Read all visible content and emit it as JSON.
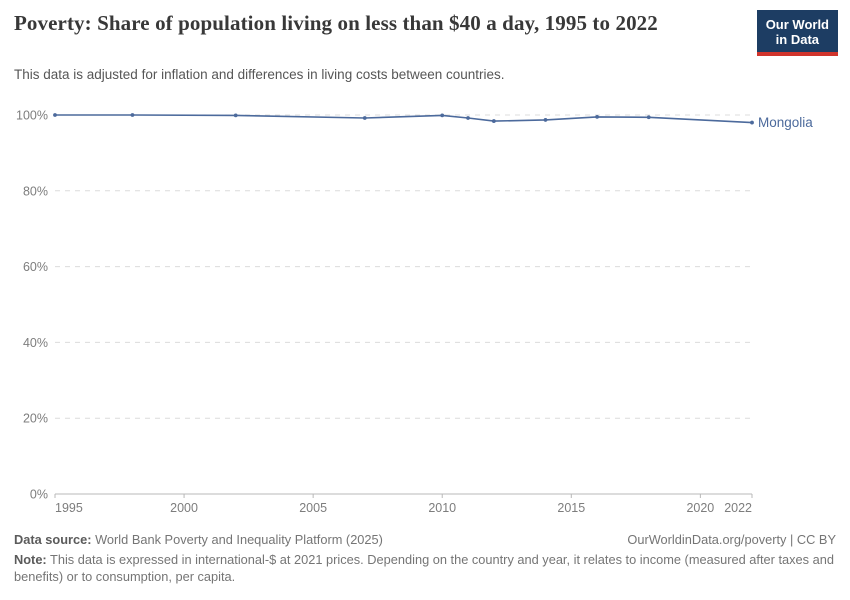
{
  "header": {
    "title": "Poverty: Share of population living on less than $40 a day, 1995 to 2022",
    "subtitle": "This data is adjusted for inflation and differences in living costs between countries."
  },
  "logo": {
    "line1": "Our World",
    "line2": "in Data",
    "bg_color": "#1d3d63",
    "bar_color": "#d0342c"
  },
  "chart_data": {
    "type": "line",
    "title": "Poverty: Share of population living on less than $40 a day, 1995 to 2022",
    "xlabel": "",
    "ylabel": "",
    "xlim": [
      1995,
      2022
    ],
    "ylim": [
      0,
      100
    ],
    "x_ticks": [
      1995,
      2000,
      2005,
      2010,
      2015,
      2020,
      2022
    ],
    "y_ticks": [
      0,
      20,
      40,
      60,
      80,
      100
    ],
    "y_tick_suffix": "%",
    "grid": "dashed-horizontal",
    "legend_position": "end-of-line-label",
    "series": [
      {
        "name": "Mongolia",
        "color": "#4C6A9C",
        "points": [
          [
            1995,
            100
          ],
          [
            1998,
            100
          ],
          [
            2002,
            99.9
          ],
          [
            2007,
            99.2
          ],
          [
            2010,
            99.9
          ],
          [
            2011,
            99.2
          ],
          [
            2012,
            98.4
          ],
          [
            2014,
            98.7
          ],
          [
            2016,
            99.5
          ],
          [
            2018,
            99.4
          ],
          [
            2022,
            98.0
          ]
        ]
      }
    ],
    "colors": {
      "gridline": "#dcdcdc",
      "axis": "#b8b8b8",
      "tick_label": "#7d7d7d"
    }
  },
  "footer": {
    "datasource_label": "Data source:",
    "datasource_value": " World Bank Poverty and Inequality Platform (2025)",
    "attribution": "OurWorldinData.org/poverty | CC BY",
    "note_label": "Note:",
    "note_value": " This data is expressed in international-$ at 2021 prices. Depending on the country and year, it relates to income (measured after taxes and benefits) or to consumption, per capita."
  }
}
